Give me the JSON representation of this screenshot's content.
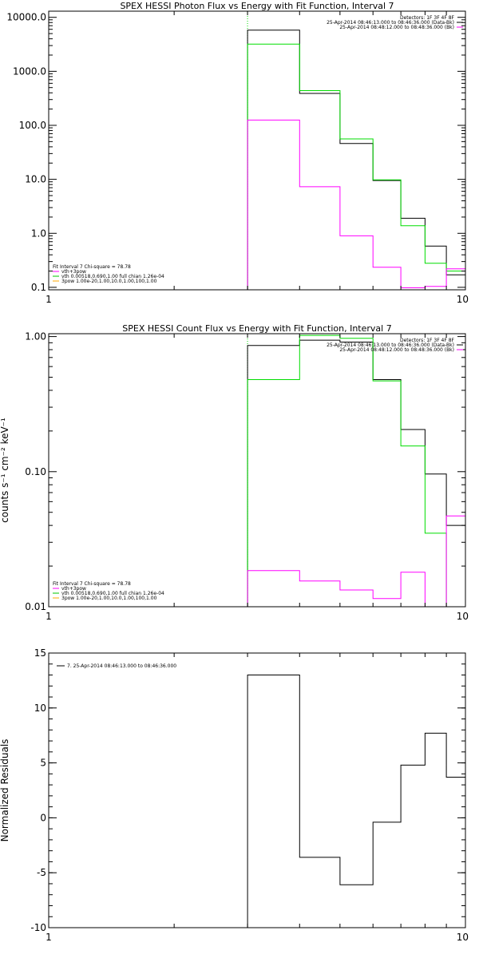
{
  "colors": {
    "data": "#000000",
    "total": "#00dd00",
    "bk": "#ff00ff",
    "vth": "#00c800",
    "spow": "#ffaa00",
    "legend_line": "#000000"
  },
  "chart_data": [
    {
      "type": "line",
      "title": "SPEX HESSI Photon Flux vs Energy with Fit Function, Interval 7",
      "xlabel": "",
      "ylabel": "",
      "xscale": "log",
      "yscale": "log",
      "xlim": [
        1,
        10
      ],
      "ylim": [
        0.09,
        13000
      ],
      "xticks": [
        {
          "v": 1,
          "label": "1"
        },
        {
          "v": 10,
          "label": "10"
        }
      ],
      "yticks": [
        {
          "v": 10000,
          "label": "10000.0"
        },
        {
          "v": 1000,
          "label": "1000.0"
        },
        {
          "v": 100,
          "label": "100.0"
        },
        {
          "v": 10,
          "label": "10.0"
        },
        {
          "v": 1,
          "label": "1.0"
        },
        {
          "v": 0.1,
          "label": "0.1"
        }
      ],
      "threshold_x": 3,
      "series": [
        {
          "name": "data",
          "color_key": "data",
          "edges": [
            3,
            4,
            5,
            6,
            7,
            8,
            9,
            10
          ],
          "values": [
            5800,
            390,
            46,
            9.5,
            1.9,
            0.58,
            0.17
          ]
        },
        {
          "name": "total",
          "color_key": "total",
          "edges": [
            3,
            4,
            5,
            6,
            7,
            8,
            9,
            10
          ],
          "values": [
            3200,
            440,
            56,
            9.8,
            1.38,
            0.28,
            0.2
          ]
        },
        {
          "name": "bk",
          "color_key": "bk",
          "edges": [
            3,
            4,
            5,
            6,
            7,
            8,
            9,
            10
          ],
          "values": [
            125,
            7.3,
            0.9,
            0.235,
            0.098,
            0.104,
            0.22
          ]
        }
      ],
      "legend_top": [
        "Detectors: 1F 3F 4F 8F",
        "25-Apr-2014 08:46:13.000 to 08:46:36.000 (Data-Bk)",
        "25-Apr-2014 08:48:12.000 to 08:48:36.000 (Bk)"
      ],
      "legend_bottom": [
        "Fit Interval 7    Chi-square = 78.78",
        "vth+3pow",
        "vth 0.00518,0.690,1.00  full chian 1.26e-04",
        "3pow 1.00e-20,1.00,10.0,1.00,100,1.00"
      ]
    },
    {
      "type": "line",
      "title": "SPEX HESSI Count Flux vs Energy with Fit Function, Interval 7",
      "xlabel": "",
      "ylabel": "counts s⁻¹ cm⁻² keV⁻¹",
      "xscale": "log",
      "yscale": "log",
      "xlim": [
        1,
        10
      ],
      "ylim": [
        0.01,
        1.05
      ],
      "xticks": [
        {
          "v": 1,
          "label": "1"
        },
        {
          "v": 10,
          "label": "10"
        }
      ],
      "yticks": [
        {
          "v": 1,
          "label": "1.00"
        },
        {
          "v": 0.1,
          "label": "0.10"
        },
        {
          "v": 0.01,
          "label": "0.01"
        }
      ],
      "threshold_x": 3,
      "series": [
        {
          "name": "data",
          "color_key": "data",
          "edges": [
            3,
            4,
            5,
            6,
            7,
            8,
            9,
            10
          ],
          "values": [
            0.86,
            0.94,
            0.91,
            0.48,
            0.205,
            0.096,
            0.04
          ]
        },
        {
          "name": "total",
          "color_key": "total",
          "edges": [
            3,
            4,
            5,
            6,
            7,
            8,
            9,
            10
          ],
          "values": [
            0.48,
            1.02,
            0.97,
            0.47,
            0.155,
            0.035,
            0.01
          ]
        },
        {
          "name": "bk",
          "color_key": "bk",
          "edges": [
            3,
            4,
            5,
            6,
            7,
            8,
            9,
            10
          ],
          "values": [
            0.0185,
            0.0155,
            0.0133,
            0.0115,
            0.018,
            0.01,
            0.047
          ]
        }
      ],
      "legend_top": [
        "Detectors: 1F 3F 4F 8F",
        "25-Apr-2014 08:46:13.000 to 08:46:36.000 (Data-Bk)",
        "25-Apr-2014 08:48:12.000 to 08:48:36.000 (Bk)"
      ],
      "legend_bottom": [
        "Fit Interval 7    Chi-square = 78.78",
        "vth+3pow",
        "vth 0.00518,0.690,1.00  full chian 1.26e-04",
        "3pow 1.00e-20,1.00,10.0,1.00,100,1.00"
      ]
    },
    {
      "type": "line",
      "title": "",
      "xlabel": "",
      "ylabel": "Normalized Residuals",
      "xscale": "log",
      "yscale": "linear",
      "xlim": [
        1,
        10
      ],
      "ylim": [
        -10,
        15
      ],
      "xticks": [
        {
          "v": 1,
          "label": "1"
        },
        {
          "v": 10,
          "label": "10"
        }
      ],
      "yticks": [
        {
          "v": 15,
          "label": "15"
        },
        {
          "v": 10,
          "label": "10"
        },
        {
          "v": 5,
          "label": "5"
        },
        {
          "v": 0,
          "label": "0"
        },
        {
          "v": -5,
          "label": "-5"
        },
        {
          "v": -10,
          "label": "-10"
        }
      ],
      "series": [
        {
          "name": "7. 25-Apr-2014 08:46:13.000 to 08:46:36.000",
          "color_key": "data",
          "edges": [
            3,
            4,
            5,
            6,
            7,
            8,
            9,
            10
          ],
          "values": [
            13,
            -3.6,
            -6.1,
            -0.4,
            4.8,
            7.7,
            3.7
          ]
        }
      ],
      "legend_left": [
        "7. 25-Apr-2014 08:46:13.000 to 08:46:36.000"
      ]
    }
  ]
}
